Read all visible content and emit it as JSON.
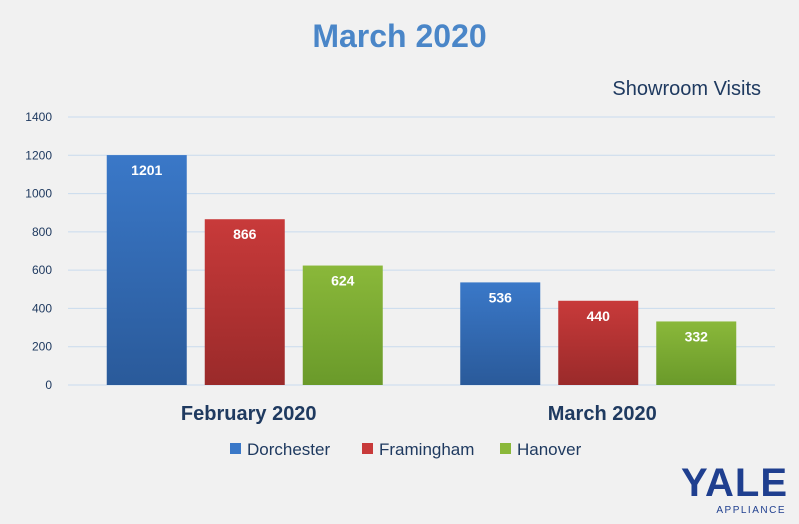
{
  "chart_data": {
    "type": "bar",
    "title": "March 2020",
    "subtitle": "Showroom Visits",
    "categories": [
      "February 2020",
      "March 2020"
    ],
    "series": [
      {
        "name": "Dorchester",
        "values": [
          1201,
          536
        ]
      },
      {
        "name": "Framingham",
        "values": [
          866,
          440
        ]
      },
      {
        "name": "Hanover",
        "values": [
          624,
          332
        ]
      }
    ],
    "ylim": [
      0,
      1400
    ],
    "yticks": [
      0,
      200,
      400,
      600,
      800,
      1000,
      1200,
      1400
    ],
    "grid": true,
    "legend_position": "bottom",
    "colors": {
      "series": [
        "#3a78c8",
        "#c83a3a",
        "#8ab83a"
      ],
      "series_dark": [
        "#2a5a9a",
        "#9a2a2a",
        "#6a9a2a"
      ],
      "grid": "#c9dbee",
      "tick_text": "#1f3a60",
      "category_text": "#1f3a60"
    }
  },
  "logo": {
    "brand": "YALE",
    "tagline": "APPLIANCE"
  }
}
